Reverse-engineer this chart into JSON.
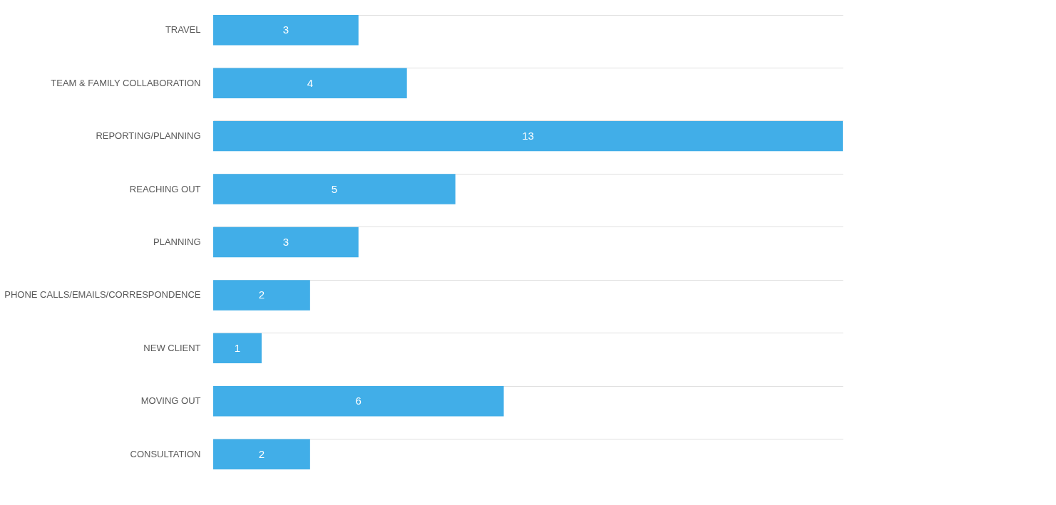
{
  "chart_data": {
    "type": "bar",
    "orientation": "horizontal",
    "categories": [
      "TRAVEL",
      "TEAM & FAMILY COLLABORATION",
      "REPORTING/PLANNING",
      "REACHING OUT",
      "PLANNING",
      "PHONE CALLS/EMAILS/CORRESPONDENCE",
      "NEW CLIENT",
      "MOVING OUT",
      "CONSULTATION"
    ],
    "values": [
      3,
      4,
      13,
      5,
      3,
      2,
      1,
      6,
      2
    ],
    "color": "#41aee8",
    "data_labels": true,
    "grid": "y"
  }
}
